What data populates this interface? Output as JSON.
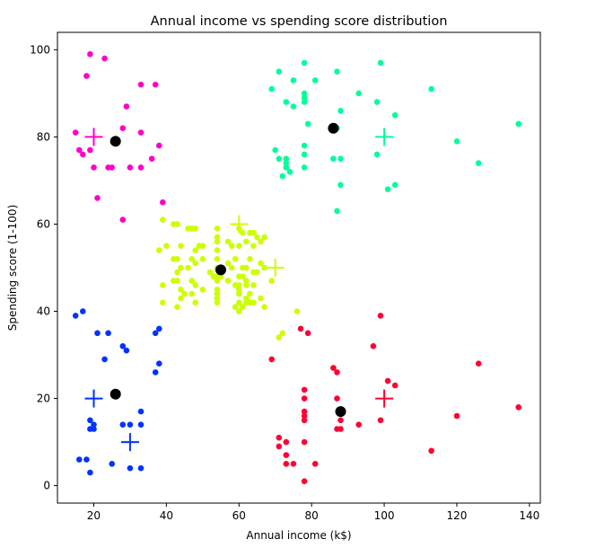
{
  "chart_data": {
    "type": "scatter",
    "title": "Annual income vs spending score distribution",
    "xlabel": "Annual income (k$)",
    "ylabel": "Spending score (1-100)",
    "xlim": [
      10,
      143
    ],
    "ylim": [
      -4,
      104
    ],
    "xticks": [
      20,
      40,
      60,
      80,
      100,
      120,
      140
    ],
    "yticks": [
      0,
      20,
      40,
      60,
      80,
      100
    ],
    "grid": false,
    "legend": "none",
    "colors": {
      "magenta": "#ff00cc",
      "green": "#00ff99",
      "yellow": "#ccff00",
      "blue": "#0033ff",
      "red": "#ff0033",
      "centroid": "#000000"
    },
    "series": [
      {
        "color": "#ff00cc",
        "points": [
          [
            19,
            99
          ],
          [
            23,
            98
          ],
          [
            18,
            94
          ],
          [
            33,
            92
          ],
          [
            37,
            92
          ],
          [
            29,
            87
          ],
          [
            28,
            82
          ],
          [
            33,
            81
          ],
          [
            15,
            81
          ],
          [
            38,
            78
          ],
          [
            19,
            77
          ],
          [
            16,
            77
          ],
          [
            17,
            76
          ],
          [
            36,
            75
          ],
          [
            20,
            73
          ],
          [
            24,
            73
          ],
          [
            25,
            73
          ],
          [
            30,
            73
          ],
          [
            33,
            73
          ],
          [
            21,
            66
          ],
          [
            28,
            61
          ],
          [
            39,
            65
          ]
        ]
      },
      {
        "color": "#00ff99",
        "points": [
          [
            78,
            97
          ],
          [
            99,
            97
          ],
          [
            71,
            95
          ],
          [
            87,
            95
          ],
          [
            75,
            93
          ],
          [
            81,
            93
          ],
          [
            69,
            91
          ],
          [
            78,
            90
          ],
          [
            113,
            91
          ],
          [
            93,
            90
          ],
          [
            78,
            89
          ],
          [
            78,
            88
          ],
          [
            98,
            88
          ],
          [
            73,
            88
          ],
          [
            75,
            87
          ],
          [
            103,
            85
          ],
          [
            88,
            86
          ],
          [
            79,
            83
          ],
          [
            137,
            83
          ],
          [
            87,
            82
          ],
          [
            71,
            75
          ],
          [
            78,
            78
          ],
          [
            120,
            79
          ],
          [
            98,
            76
          ],
          [
            126,
            74
          ],
          [
            70,
            77
          ],
          [
            78,
            76
          ],
          [
            86,
            75
          ],
          [
            88,
            75
          ],
          [
            73,
            74
          ],
          [
            73,
            73
          ],
          [
            78,
            73
          ],
          [
            74,
            72
          ],
          [
            72,
            71
          ],
          [
            88,
            69
          ],
          [
            103,
            69
          ],
          [
            101,
            68
          ],
          [
            87,
            63
          ],
          [
            73,
            75
          ]
        ]
      },
      {
        "color": "#ccff00",
        "points": [
          [
            39,
            61
          ],
          [
            42,
            60
          ],
          [
            43,
            60
          ],
          [
            46,
            59
          ],
          [
            47,
            59
          ],
          [
            48,
            59
          ],
          [
            54,
            59
          ],
          [
            60,
            59
          ],
          [
            61,
            58
          ],
          [
            63,
            58
          ],
          [
            64,
            58
          ],
          [
            54,
            57
          ],
          [
            54,
            56
          ],
          [
            62,
            56
          ],
          [
            65,
            57
          ],
          [
            57,
            56
          ],
          [
            58,
            55
          ],
          [
            60,
            55
          ],
          [
            64,
            55
          ],
          [
            49,
            55
          ],
          [
            44,
            55
          ],
          [
            50,
            55
          ],
          [
            48,
            54
          ],
          [
            54,
            54
          ],
          [
            40,
            55
          ],
          [
            42,
            52
          ],
          [
            43,
            52
          ],
          [
            47,
            52
          ],
          [
            50,
            52
          ],
          [
            54,
            52
          ],
          [
            59,
            52
          ],
          [
            63,
            52
          ],
          [
            57,
            51
          ],
          [
            48,
            51
          ],
          [
            46,
            50
          ],
          [
            54,
            50
          ],
          [
            58,
            50
          ],
          [
            61,
            50
          ],
          [
            62,
            50
          ],
          [
            64,
            49
          ],
          [
            65,
            49
          ],
          [
            44,
            50
          ],
          [
            43,
            49
          ],
          [
            52,
            49
          ],
          [
            53,
            48
          ],
          [
            54,
            48
          ],
          [
            55,
            48
          ],
          [
            60,
            48
          ],
          [
            61,
            48
          ],
          [
            62,
            47
          ],
          [
            42,
            47
          ],
          [
            43,
            47
          ],
          [
            47,
            47
          ],
          [
            54,
            47
          ],
          [
            57,
            47
          ],
          [
            39,
            46
          ],
          [
            48,
            46
          ],
          [
            59,
            46
          ],
          [
            62,
            46
          ],
          [
            64,
            46
          ],
          [
            44,
            45
          ],
          [
            50,
            45
          ],
          [
            54,
            45
          ],
          [
            60,
            45
          ],
          [
            45,
            44
          ],
          [
            47,
            44
          ],
          [
            54,
            44
          ],
          [
            60,
            44
          ],
          [
            62,
            43
          ],
          [
            64,
            42
          ],
          [
            63,
            42
          ],
          [
            67,
            41
          ],
          [
            59,
            41
          ],
          [
            60,
            42
          ],
          [
            62,
            42
          ],
          [
            66,
            43
          ],
          [
            39,
            42
          ],
          [
            43,
            41
          ],
          [
            54,
            42
          ],
          [
            54,
            43
          ],
          [
            48,
            42
          ],
          [
            66,
            56
          ],
          [
            67,
            57
          ],
          [
            67,
            50
          ],
          [
            66,
            51
          ],
          [
            60,
            46
          ],
          [
            38,
            54
          ],
          [
            63,
            44
          ],
          [
            54,
            44
          ],
          [
            44,
            43
          ],
          [
            60,
            40
          ],
          [
            61,
            41
          ],
          [
            72,
            35
          ],
          [
            76,
            40
          ],
          [
            71,
            34
          ],
          [
            69,
            47
          ]
        ]
      },
      {
        "color": "#0033ff",
        "points": [
          [
            15,
            39
          ],
          [
            17,
            40
          ],
          [
            21,
            35
          ],
          [
            24,
            35
          ],
          [
            38,
            36
          ],
          [
            37,
            35
          ],
          [
            28,
            32
          ],
          [
            29,
            31
          ],
          [
            23,
            29
          ],
          [
            38,
            28
          ],
          [
            37,
            26
          ],
          [
            33,
            17
          ],
          [
            20,
            14
          ],
          [
            19,
            15
          ],
          [
            20,
            13
          ],
          [
            28,
            14
          ],
          [
            30,
            14
          ],
          [
            33,
            14
          ],
          [
            19,
            13
          ],
          [
            16,
            6
          ],
          [
            18,
            6
          ],
          [
            25,
            5
          ],
          [
            19,
            3
          ],
          [
            30,
            4
          ],
          [
            33,
            4
          ]
        ]
      },
      {
        "color": "#ff0033",
        "points": [
          [
            77,
            36
          ],
          [
            79,
            35
          ],
          [
            99,
            39
          ],
          [
            97,
            32
          ],
          [
            86,
            27
          ],
          [
            87,
            26
          ],
          [
            69,
            29
          ],
          [
            78,
            22
          ],
          [
            126,
            28
          ],
          [
            101,
            24
          ],
          [
            103,
            23
          ],
          [
            78,
            20
          ],
          [
            87,
            20
          ],
          [
            78,
            17
          ],
          [
            78,
            16
          ],
          [
            137,
            18
          ],
          [
            120,
            16
          ],
          [
            88,
            15
          ],
          [
            99,
            15
          ],
          [
            78,
            15
          ],
          [
            93,
            14
          ],
          [
            88,
            13
          ],
          [
            87,
            13
          ],
          [
            71,
            11
          ],
          [
            71,
            9
          ],
          [
            73,
            10
          ],
          [
            78,
            10
          ],
          [
            113,
            8
          ],
          [
            73,
            7
          ],
          [
            75,
            5
          ],
          [
            73,
            5
          ],
          [
            81,
            5
          ],
          [
            78,
            1
          ]
        ]
      }
    ],
    "centroids": [
      [
        26,
        79
      ],
      [
        86,
        82
      ],
      [
        55,
        49.5
      ],
      [
        26,
        21
      ],
      [
        88,
        17
      ]
    ],
    "crosses": [
      {
        "color": "#ff00cc",
        "x": 20,
        "y": 80
      },
      {
        "color": "#00ff99",
        "x": 100,
        "y": 80
      },
      {
        "color": "#ccff00",
        "x": 60,
        "y": 60
      },
      {
        "color": "#ccff00",
        "x": 70,
        "y": 50
      },
      {
        "color": "#0033ff",
        "x": 20,
        "y": 20
      },
      {
        "color": "#0033ff",
        "x": 30,
        "y": 10
      },
      {
        "color": "#ff0033",
        "x": 100,
        "y": 20
      }
    ]
  }
}
